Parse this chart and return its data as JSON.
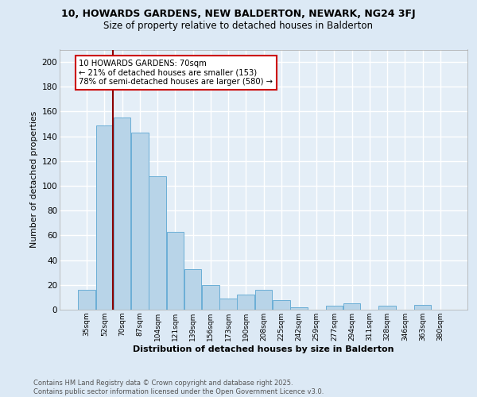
{
  "title_line1": "10, HOWARDS GARDENS, NEW BALDERTON, NEWARK, NG24 3FJ",
  "title_line2": "Size of property relative to detached houses in Balderton",
  "xlabel": "Distribution of detached houses by size in Balderton",
  "ylabel": "Number of detached properties",
  "categories": [
    "35sqm",
    "52sqm",
    "70sqm",
    "87sqm",
    "104sqm",
    "121sqm",
    "139sqm",
    "156sqm",
    "173sqm",
    "190sqm",
    "208sqm",
    "225sqm",
    "242sqm",
    "259sqm",
    "277sqm",
    "294sqm",
    "311sqm",
    "328sqm",
    "346sqm",
    "363sqm",
    "380sqm"
  ],
  "values": [
    16,
    149,
    155,
    143,
    108,
    63,
    33,
    20,
    9,
    12,
    16,
    8,
    2,
    0,
    3,
    5,
    0,
    3,
    0,
    4,
    0
  ],
  "bar_color": "#b8d4e8",
  "bar_edge_color": "#6aaed6",
  "vline_color": "#8b0000",
  "vline_index": 2,
  "annotation_text": "10 HOWARDS GARDENS: 70sqm\n← 21% of detached houses are smaller (153)\n78% of semi-detached houses are larger (580) →",
  "annotation_box_bg": "#ffffff",
  "annotation_box_edge": "#cc0000",
  "ylim": [
    0,
    210
  ],
  "yticks": [
    0,
    20,
    40,
    60,
    80,
    100,
    120,
    140,
    160,
    180,
    200
  ],
  "bg_color": "#dce9f5",
  "plot_bg_color": "#e4eef7",
  "grid_color": "#ffffff",
  "footer_line1": "Contains HM Land Registry data © Crown copyright and database right 2025.",
  "footer_line2": "Contains public sector information licensed under the Open Government Licence v3.0."
}
